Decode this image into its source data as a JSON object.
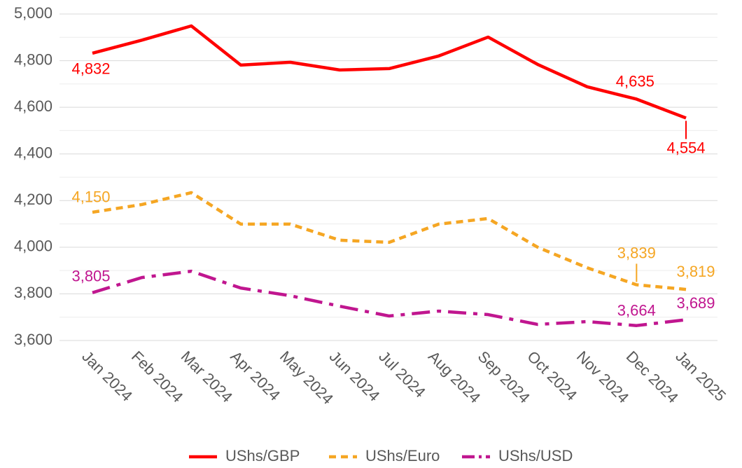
{
  "chart_data": {
    "type": "line",
    "categories": [
      "Jan 2024",
      "Feb 2024",
      "Mar 2024",
      "Apr 2024",
      "May 2024",
      "Jun 2024",
      "Jul 2024",
      "Aug 2024",
      "Sep 2024",
      "Oct 2024",
      "Nov 2024",
      "Dec 2024",
      "Jan 2025"
    ],
    "series": [
      {
        "name": "UShs/GBP",
        "color": "#ff0000",
        "dash": "solid",
        "values": [
          4832,
          4888,
          4949,
          4781,
          4793,
          4760,
          4766,
          4820,
          4901,
          4784,
          4688,
          4635,
          4554
        ],
        "value_labels": [
          "4,832",
          null,
          null,
          null,
          null,
          null,
          null,
          null,
          null,
          null,
          null,
          "4,635",
          "4,554"
        ]
      },
      {
        "name": "UShs/Euro",
        "color": "#f5a623",
        "dash": "dash",
        "values": [
          4150,
          4183,
          4234,
          4099,
          4099,
          4030,
          4021,
          4099,
          4123,
          4000,
          3912,
          3839,
          3819
        ],
        "value_labels": [
          "4,150",
          null,
          null,
          null,
          null,
          null,
          null,
          null,
          null,
          null,
          null,
          "3,839",
          "3,819"
        ]
      },
      {
        "name": "UShs/USD",
        "color": "#c0168f",
        "dash": "longdash",
        "values": [
          3805,
          3870,
          3897,
          3825,
          3792,
          3747,
          3705,
          3726,
          3711,
          3669,
          3681,
          3664,
          3689
        ],
        "value_labels": [
          "3,805",
          null,
          null,
          null,
          null,
          null,
          null,
          null,
          null,
          null,
          null,
          "3,664",
          "3,689"
        ]
      }
    ],
    "ylim": [
      3600,
      5000
    ],
    "yticks": [
      {
        "value": 3600,
        "label": "3,600"
      },
      {
        "value": 3800,
        "label": "3,800"
      },
      {
        "value": 4000,
        "label": "4,000"
      },
      {
        "value": 4200,
        "label": "4,200"
      },
      {
        "value": 4400,
        "label": "4,400"
      },
      {
        "value": 4600,
        "label": "4,600"
      },
      {
        "value": 4800,
        "label": "4,800"
      },
      {
        "value": 5000,
        "label": "5,000"
      }
    ],
    "y_minor_ticks": [
      3700,
      3900,
      4100,
      4300,
      4500,
      4700,
      4900
    ],
    "grid": true,
    "legend": "bottom"
  }
}
